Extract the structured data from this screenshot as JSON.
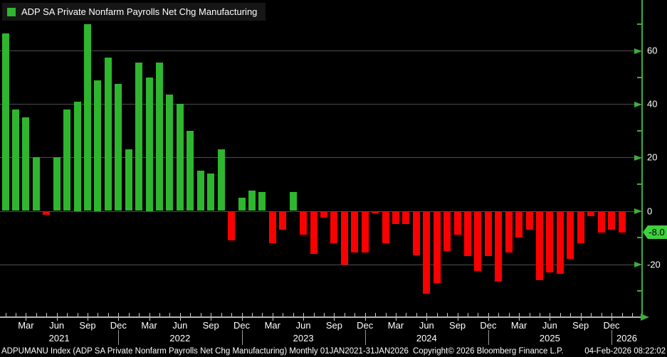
{
  "legend": {
    "label": "ADP SA Private Nonfarm Payrolls Net Chg Manufacturing",
    "swatch_color": "#2eb62e"
  },
  "y_axis": {
    "major_ticks": [
      60,
      40,
      20,
      0,
      -20
    ],
    "minor_ticks": [
      70,
      50,
      30,
      10,
      -10,
      -30
    ],
    "last_value_tag": "-8.0",
    "axis_color": "#3cae3c",
    "tag_background": "#3fd03f"
  },
  "x_axis": {
    "month_labels": [
      "Mar",
      "Jun",
      "Sep",
      "Dec"
    ],
    "years": [
      "2021",
      "2022",
      "2023",
      "2024",
      "2025",
      "2026"
    ]
  },
  "status_bar": {
    "left": "ADPUMANU Index (ADP SA Private Nonfarm Payrolls Net Chg Manufacturing) Monthly 01JAN2021-31JAN2026",
    "center": "Copyright© 2026 Bloomberg Finance L.P.",
    "right": "04-Feb-2026 08:22:02"
  },
  "chart_data": {
    "type": "bar",
    "title": "ADP SA Private Nonfarm Payrolls Net Chg Manufacturing",
    "ticker": "ADPUMANU Index",
    "frequency": "Monthly",
    "period": "01JAN2021-31JAN2026",
    "ylabel": "",
    "xlabel": "",
    "ylim": [
      -40,
      79
    ],
    "gridlines": [
      60,
      40,
      20,
      0,
      -20
    ],
    "grid": true,
    "legend_position": "top-left",
    "axis_position": "right",
    "positive_color": "#2eb62e",
    "negative_color": "#fb0000",
    "last_value": -8.0,
    "categories": [
      "Jan 2021",
      "Feb 2021",
      "Mar 2021",
      "Apr 2021",
      "May 2021",
      "Jun 2021",
      "Jul 2021",
      "Aug 2021",
      "Sep 2021",
      "Oct 2021",
      "Nov 2021",
      "Dec 2021",
      "Jan 2022",
      "Feb 2022",
      "Mar 2022",
      "Apr 2022",
      "May 2022",
      "Jun 2022",
      "Jul 2022",
      "Aug 2022",
      "Sep 2022",
      "Oct 2022",
      "Nov 2022",
      "Dec 2022",
      "Jan 2023",
      "Feb 2023",
      "Mar 2023",
      "Apr 2023",
      "May 2023",
      "Jun 2023",
      "Jul 2023",
      "Aug 2023",
      "Sep 2023",
      "Oct 2023",
      "Nov 2023",
      "Dec 2023",
      "Jan 2024",
      "Feb 2024",
      "Mar 2024",
      "Apr 2024",
      "May 2024",
      "Jun 2024",
      "Jul 2024",
      "Aug 2024",
      "Sep 2024",
      "Oct 2024",
      "Nov 2024",
      "Dec 2024",
      "Jan 2025",
      "Feb 2025",
      "Mar 2025",
      "Apr 2025",
      "May 2025",
      "Jun 2025",
      "Jul 2025",
      "Aug 2025",
      "Sep 2025",
      "Oct 2025",
      "Nov 2025",
      "Dec 2025",
      "Jan 2026"
    ],
    "values": [
      66.5,
      38,
      35,
      20,
      -1.5,
      20,
      38,
      41,
      70,
      49,
      57.5,
      47.5,
      23,
      55.5,
      50,
      55.5,
      43.5,
      40,
      30,
      15,
      14,
      23,
      -11,
      5,
      7.5,
      7,
      -12,
      -7,
      7,
      -9,
      -16,
      -2.5,
      -12,
      -20,
      -15.5,
      -15.5,
      -1,
      -12,
      -5,
      -5,
      -16.5,
      -31,
      -27,
      -15,
      -9,
      -17,
      -22.5,
      -17,
      -26.5,
      -15.5,
      -10,
      -7,
      -26,
      -23,
      -23.5,
      -18,
      -12,
      -2,
      -8,
      -7,
      -8
    ]
  }
}
